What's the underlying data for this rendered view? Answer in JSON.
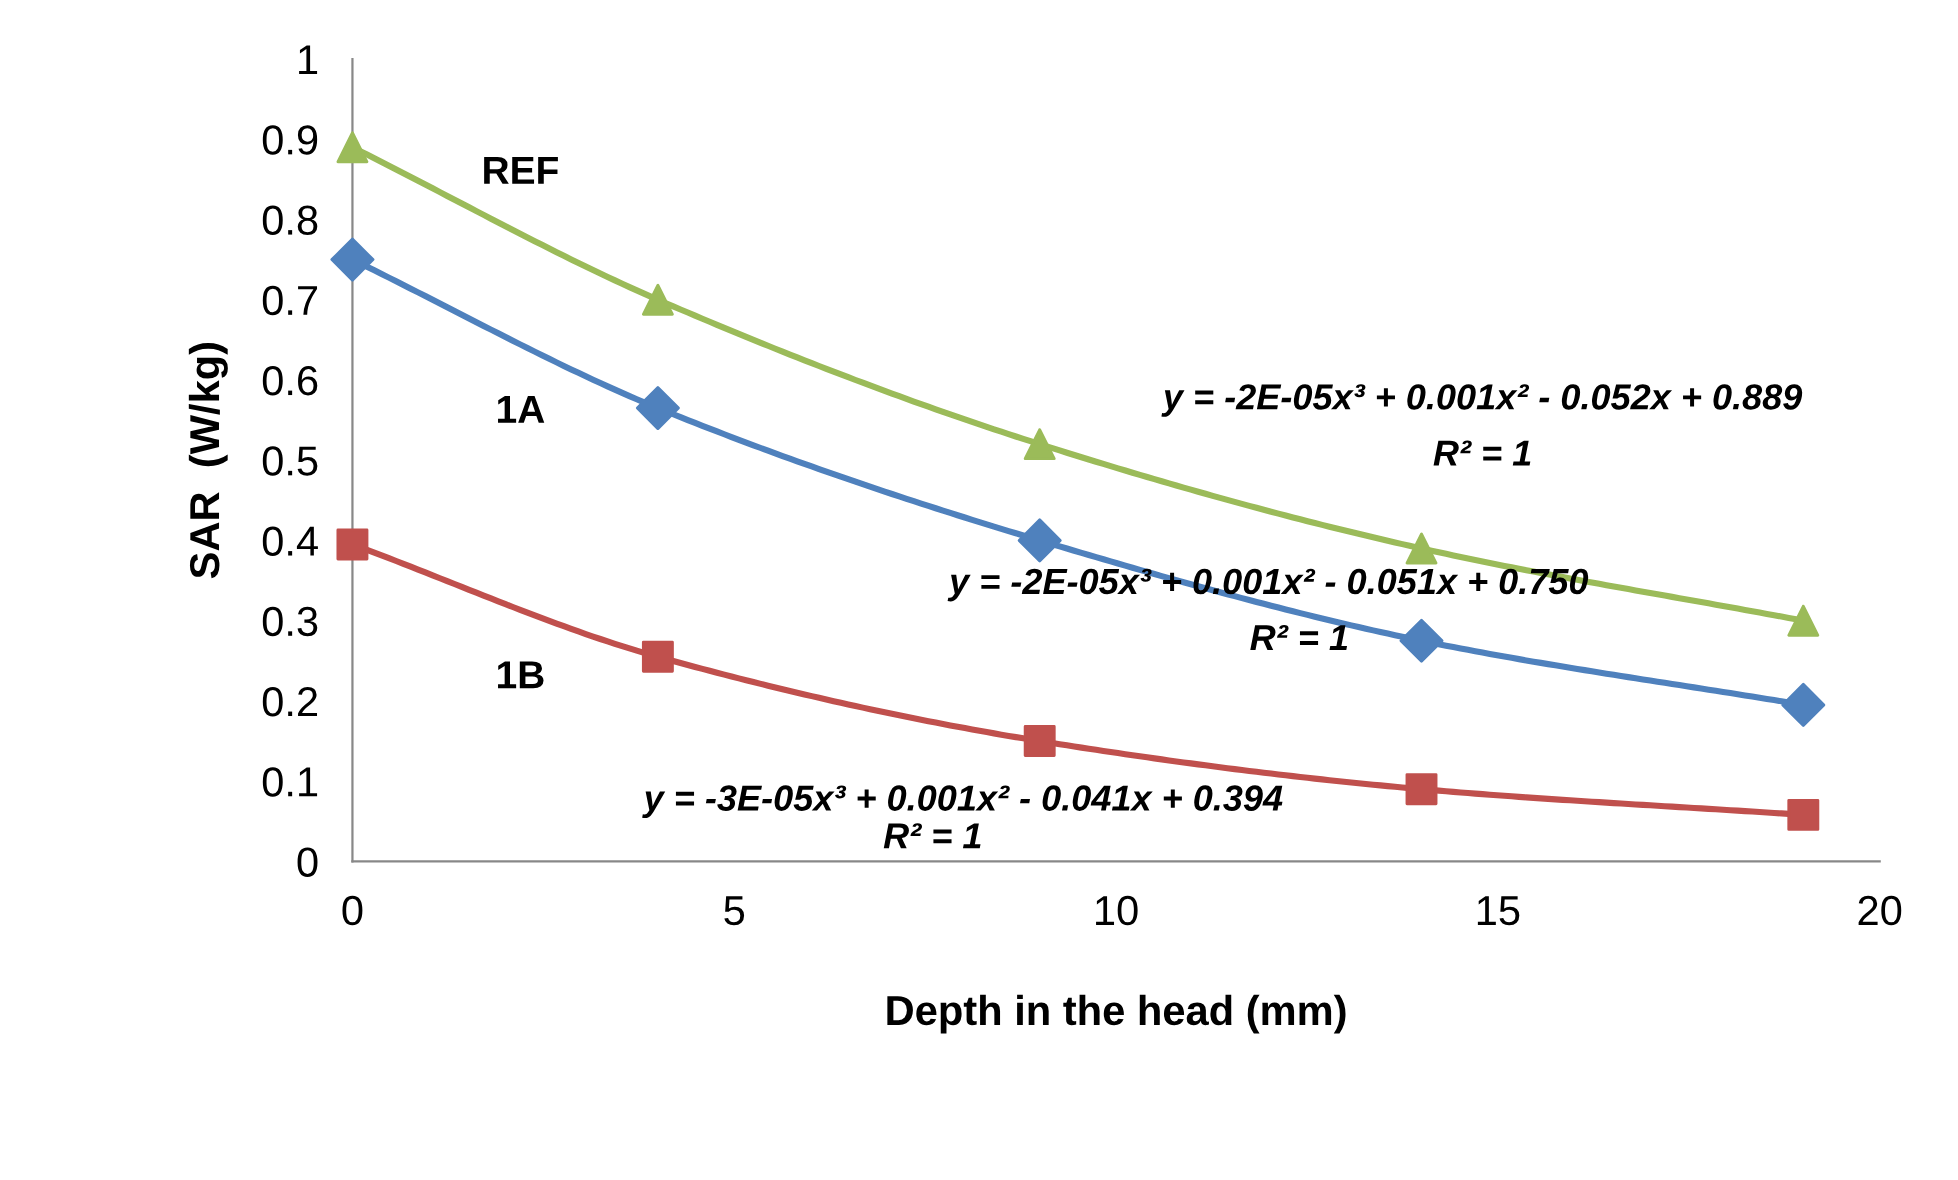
{
  "chart_data": {
    "type": "line",
    "xlabel": "Depth in the head (mm)",
    "ylabel": "SAR  (W/kg)",
    "x": [
      0,
      4,
      9,
      14,
      19
    ],
    "series": [
      {
        "name": "REF",
        "color": "#9bbb59",
        "marker": "triangle",
        "values": [
          0.89,
          0.7,
          0.52,
          0.39,
          0.3
        ]
      },
      {
        "name": "1A",
        "color": "#4f81bd",
        "marker": "diamond",
        "values": [
          0.75,
          0.565,
          0.4,
          0.275,
          0.195
        ]
      },
      {
        "name": "1B",
        "color": "#c0504d",
        "marker": "square",
        "values": [
          0.395,
          0.255,
          0.15,
          0.09,
          0.058
        ]
      }
    ],
    "annotations": [
      "y = -2E-05x³ + 0.001x² - 0.052x + 0.889",
      "R² = 1",
      "y = -2E-05x³ + 0.001x² - 0.051x + 0.750",
      "R² = 1",
      "y = -3E-05x³ + 0.001x² - 0.041x + 0.394",
      "R² = 1"
    ],
    "xlim": [
      0,
      20
    ],
    "xticks": [
      0,
      5,
      10,
      15,
      20
    ],
    "ylim": [
      0,
      1
    ],
    "yticks": [
      0,
      0.1,
      0.2,
      0.3,
      0.4,
      0.5,
      0.6,
      0.7,
      0.8,
      0.9,
      1
    ],
    "grid": false,
    "legend": false
  }
}
